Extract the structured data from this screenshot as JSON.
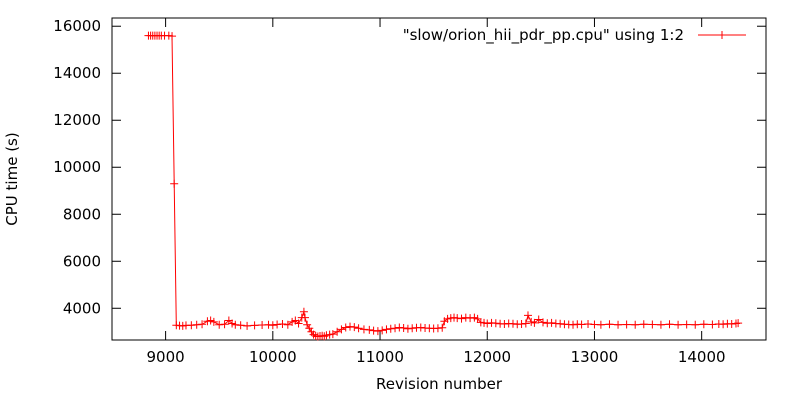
{
  "chart_data": {
    "type": "line",
    "title": "",
    "xlabel": "Revision number",
    "ylabel": "CPU time (s)",
    "xlim": [
      8500,
      14600
    ],
    "ylim": [
      2650,
      16350
    ],
    "xticks": [
      9000,
      10000,
      11000,
      12000,
      13000,
      14000
    ],
    "yticks": [
      4000,
      6000,
      8000,
      10000,
      12000,
      14000,
      16000
    ],
    "grid": false,
    "legend_position": "top-right",
    "colors": {
      "series": "#ff0000",
      "axes": "#000000",
      "background": "#ffffff"
    },
    "series": [
      {
        "name": "\"slow/orion_hii_pdr_pp.cpu\" using 1:2",
        "marker": "plus",
        "x": [
          8840,
          8860,
          8880,
          8900,
          8920,
          8940,
          8960,
          8990,
          9030,
          9060,
          9080,
          9100,
          9130,
          9160,
          9190,
          9240,
          9290,
          9340,
          9390,
          9420,
          9450,
          9500,
          9550,
          9590,
          9620,
          9650,
          9700,
          9760,
          9830,
          9900,
          9960,
          10000,
          10040,
          10090,
          10140,
          10180,
          10210,
          10240,
          10270,
          10290,
          10300,
          10320,
          10340,
          10360,
          10380,
          10400,
          10420,
          10440,
          10460,
          10480,
          10500,
          10530,
          10560,
          10600,
          10640,
          10680,
          10720,
          10760,
          10800,
          10850,
          10900,
          10940,
          10980,
          11020,
          11060,
          11100,
          11140,
          11180,
          11220,
          11260,
          11300,
          11340,
          11380,
          11420,
          11460,
          11500,
          11540,
          11580,
          11600,
          11630,
          11660,
          11690,
          11720,
          11760,
          11800,
          11840,
          11880,
          11910,
          11940,
          11970,
          12000,
          12040,
          12080,
          12120,
          12160,
          12200,
          12240,
          12280,
          12320,
          12360,
          12380,
          12410,
          12440,
          12480,
          12520,
          12560,
          12600,
          12640,
          12680,
          12720,
          12760,
          12800,
          12840,
          12880,
          12940,
          13000,
          13060,
          13140,
          13220,
          13300,
          13380,
          13460,
          13540,
          13620,
          13700,
          13780,
          13860,
          13940,
          14020,
          14100,
          14160,
          14200,
          14240,
          14280,
          14320,
          14340
        ],
        "y": [
          15600,
          15600,
          15600,
          15600,
          15600,
          15600,
          15600,
          15600,
          15600,
          15580,
          9300,
          3280,
          3260,
          3250,
          3270,
          3280,
          3300,
          3320,
          3450,
          3480,
          3420,
          3300,
          3320,
          3480,
          3350,
          3300,
          3280,
          3250,
          3270,
          3290,
          3300,
          3280,
          3310,
          3330,
          3300,
          3420,
          3480,
          3350,
          3600,
          3850,
          3600,
          3300,
          3150,
          3000,
          2880,
          2820,
          2800,
          2820,
          2830,
          2810,
          2850,
          2880,
          2900,
          3000,
          3100,
          3180,
          3220,
          3200,
          3150,
          3100,
          3080,
          3050,
          3030,
          3060,
          3100,
          3130,
          3150,
          3180,
          3160,
          3130,
          3150,
          3170,
          3180,
          3160,
          3150,
          3140,
          3150,
          3170,
          3450,
          3550,
          3580,
          3600,
          3580,
          3560,
          3600,
          3580,
          3600,
          3550,
          3400,
          3380,
          3350,
          3380,
          3360,
          3340,
          3330,
          3350,
          3340,
          3320,
          3330,
          3350,
          3700,
          3420,
          3380,
          3520,
          3400,
          3360,
          3380,
          3350,
          3340,
          3320,
          3310,
          3300,
          3320,
          3310,
          3330,
          3310,
          3300,
          3320,
          3300,
          3310,
          3300,
          3320,
          3310,
          3300,
          3320,
          3300,
          3310,
          3300,
          3320,
          3310,
          3330,
          3320,
          3340,
          3330,
          3350,
          3370
        ]
      }
    ]
  }
}
